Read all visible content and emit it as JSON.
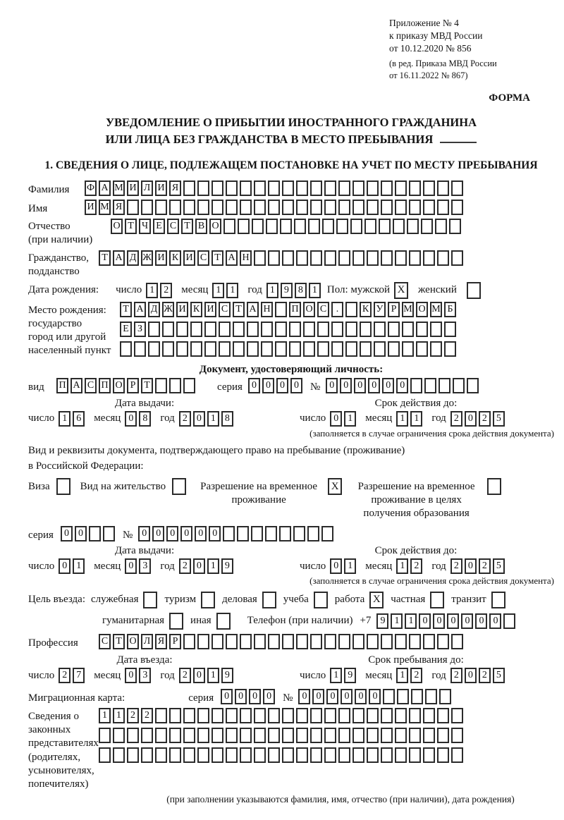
{
  "doc": {
    "appendix_lines": [
      "Приложение № 4",
      "к приказу МВД России",
      "от 10.12.2020 № 856"
    ],
    "revision_lines": [
      "(в ред. Приказа МВД России",
      "от 16.11.2022 № 867)"
    ],
    "form_label": "ФОРМА",
    "title_line1": "УВЕДОМЛЕНИЕ О ПРИБЫТИИ ИНОСТРАННОГО ГРАЖДАНИНА",
    "title_line2": "ИЛИ ЛИЦА БЕЗ ГРАЖДАНСТВА В МЕСТО ПРЕБЫВАНИЯ",
    "section1_heading": "1. СВЕДЕНИЯ О ЛИЦЕ, ПОДЛЕЖАЩЕМ ПОСТАНОВКЕ НА УЧЕТ ПО МЕСТУ ПРЕБЫВАНИЯ"
  },
  "date_labels": {
    "day": "число",
    "month": "месяц",
    "year": "год"
  },
  "person": {
    "surname": {
      "label": "Фамилия",
      "cells": {
        "v": "ФАМИЛИЯ",
        "n": 27
      }
    },
    "given_name": {
      "label": "Имя",
      "cells": {
        "v": "ИМЯ",
        "n": 27
      }
    },
    "patronymic": {
      "label_line1": "Отчество",
      "label_line2": "(при наличии)",
      "cells": {
        "v": "ОТЧЕСТВО",
        "n": 25
      }
    },
    "citizenship": {
      "label_line1": "Гражданство,",
      "label_line2": "подданство",
      "cells": {
        "v": "ТАДЖИКИСТАН",
        "n": 26
      }
    },
    "birth_date": {
      "label": "Дата рождения:",
      "day": {
        "v": "12",
        "n": 2
      },
      "month": {
        "v": "11",
        "n": 2
      },
      "year": {
        "v": "1981",
        "n": 4
      }
    },
    "sex": {
      "label": "Пол: мужской",
      "male_checked": true,
      "female_label": "женский",
      "female_checked": false
    },
    "birth_place": {
      "label_lines": [
        "Место рождения:",
        "государство",
        "город или другой",
        "населенный пункт"
      ],
      "rows": [
        {
          "v": "ТАДЖИКИСТАН ПОС. КУРМОМБ",
          "n": 24
        },
        {
          "v": "ЕЗ",
          "n": 24
        },
        {
          "v": "",
          "n": 24
        }
      ]
    }
  },
  "identity_doc": {
    "heading": "Документ, удостоверяющий личность:",
    "kind_label": "вид",
    "kind": {
      "v": "ПАСПОРТ",
      "n": 10
    },
    "series_label": "серия",
    "series": {
      "v": "0000",
      "n": 4
    },
    "number_label": "№",
    "number": {
      "v": "000000",
      "n": 11
    },
    "issue_title": "Дата выдачи:",
    "issue": {
      "day": {
        "v": "16",
        "n": 2
      },
      "month": {
        "v": "08",
        "n": 2
      },
      "year": {
        "v": "2018",
        "n": 4
      }
    },
    "valid_title": "Срок действия до:",
    "valid": {
      "day": {
        "v": "01",
        "n": 2
      },
      "month": {
        "v": "11",
        "n": 2
      },
      "year": {
        "v": "2025",
        "n": 4
      }
    },
    "note": "(заполняется в случае ограничения срока действия документа)"
  },
  "residence_doc": {
    "intro_line1": "Вид и реквизиты документа, подтверждающего право на пребывание (проживание)",
    "intro_line2": "в Российской Федерации:",
    "options": [
      {
        "label": "Виза",
        "checked": false
      },
      {
        "label": "Вид на жительство",
        "checked": false
      },
      {
        "label": "Разрешение на временное проживание",
        "checked": true
      },
      {
        "label": "Разрешение на временное проживание в целях получения образования",
        "checked": false
      }
    ],
    "series_label": "серия",
    "series": {
      "v": "00",
      "n": 4
    },
    "number_label": "№",
    "number": {
      "v": "000000",
      "n": 14
    },
    "issue_title": "Дата выдачи:",
    "issue": {
      "day": {
        "v": "01",
        "n": 2
      },
      "month": {
        "v": "03",
        "n": 2
      },
      "year": {
        "v": "2019",
        "n": 4
      }
    },
    "valid_title": "Срок действия до:",
    "valid": {
      "day": {
        "v": "01",
        "n": 2
      },
      "month": {
        "v": "12",
        "n": 2
      },
      "year": {
        "v": "2025",
        "n": 4
      }
    },
    "note": "(заполняется в случае ограничения срока действия документа)"
  },
  "entry_purpose": {
    "label": "Цель въезда:",
    "options": [
      {
        "label": "служебная",
        "checked": false
      },
      {
        "label": "туризм",
        "checked": false
      },
      {
        "label": "деловая",
        "checked": false
      },
      {
        "label": "учеба",
        "checked": false
      },
      {
        "label": "работа",
        "checked": true
      },
      {
        "label": "частная",
        "checked": false
      },
      {
        "label": "транзит",
        "checked": false
      },
      {
        "label": "гуманитарная",
        "checked": false
      },
      {
        "label": "иная",
        "checked": false
      }
    ],
    "phone_label": "Телефон (при наличии)",
    "phone_prefix": "+7",
    "phone": {
      "v": "911000000",
      "n": 10
    }
  },
  "profession": {
    "label": "Профессия",
    "cells": {
      "v": "СТОЛЯР",
      "n": 26
    }
  },
  "entry_date": {
    "title": "Дата въезда:",
    "day": {
      "v": "27",
      "n": 2
    },
    "month": {
      "v": "03",
      "n": 2
    },
    "year": {
      "v": "2019",
      "n": 4
    }
  },
  "stay_until": {
    "title": "Срок пребывания до:",
    "day": {
      "v": "19",
      "n": 2
    },
    "month": {
      "v": "12",
      "n": 2
    },
    "year": {
      "v": "2025",
      "n": 4
    }
  },
  "migration_card": {
    "label": "Миграционная карта:",
    "series_label": "серия",
    "series": {
      "v": "0000",
      "n": 4
    },
    "number_label": "№",
    "number": {
      "v": "000000",
      "n": 11
    }
  },
  "representatives": {
    "label_lines": [
      "Сведения о",
      "законных",
      "представителях",
      "(родителях,",
      "усыновителях,",
      "попечителях)"
    ],
    "rows": [
      {
        "v": "1122",
        "n": 26
      },
      {
        "v": "",
        "n": 26
      },
      {
        "v": "",
        "n": 26
      }
    ],
    "note": "(при заполнении указываются фамилия, имя, отчество (при наличии), дата рождения)"
  }
}
